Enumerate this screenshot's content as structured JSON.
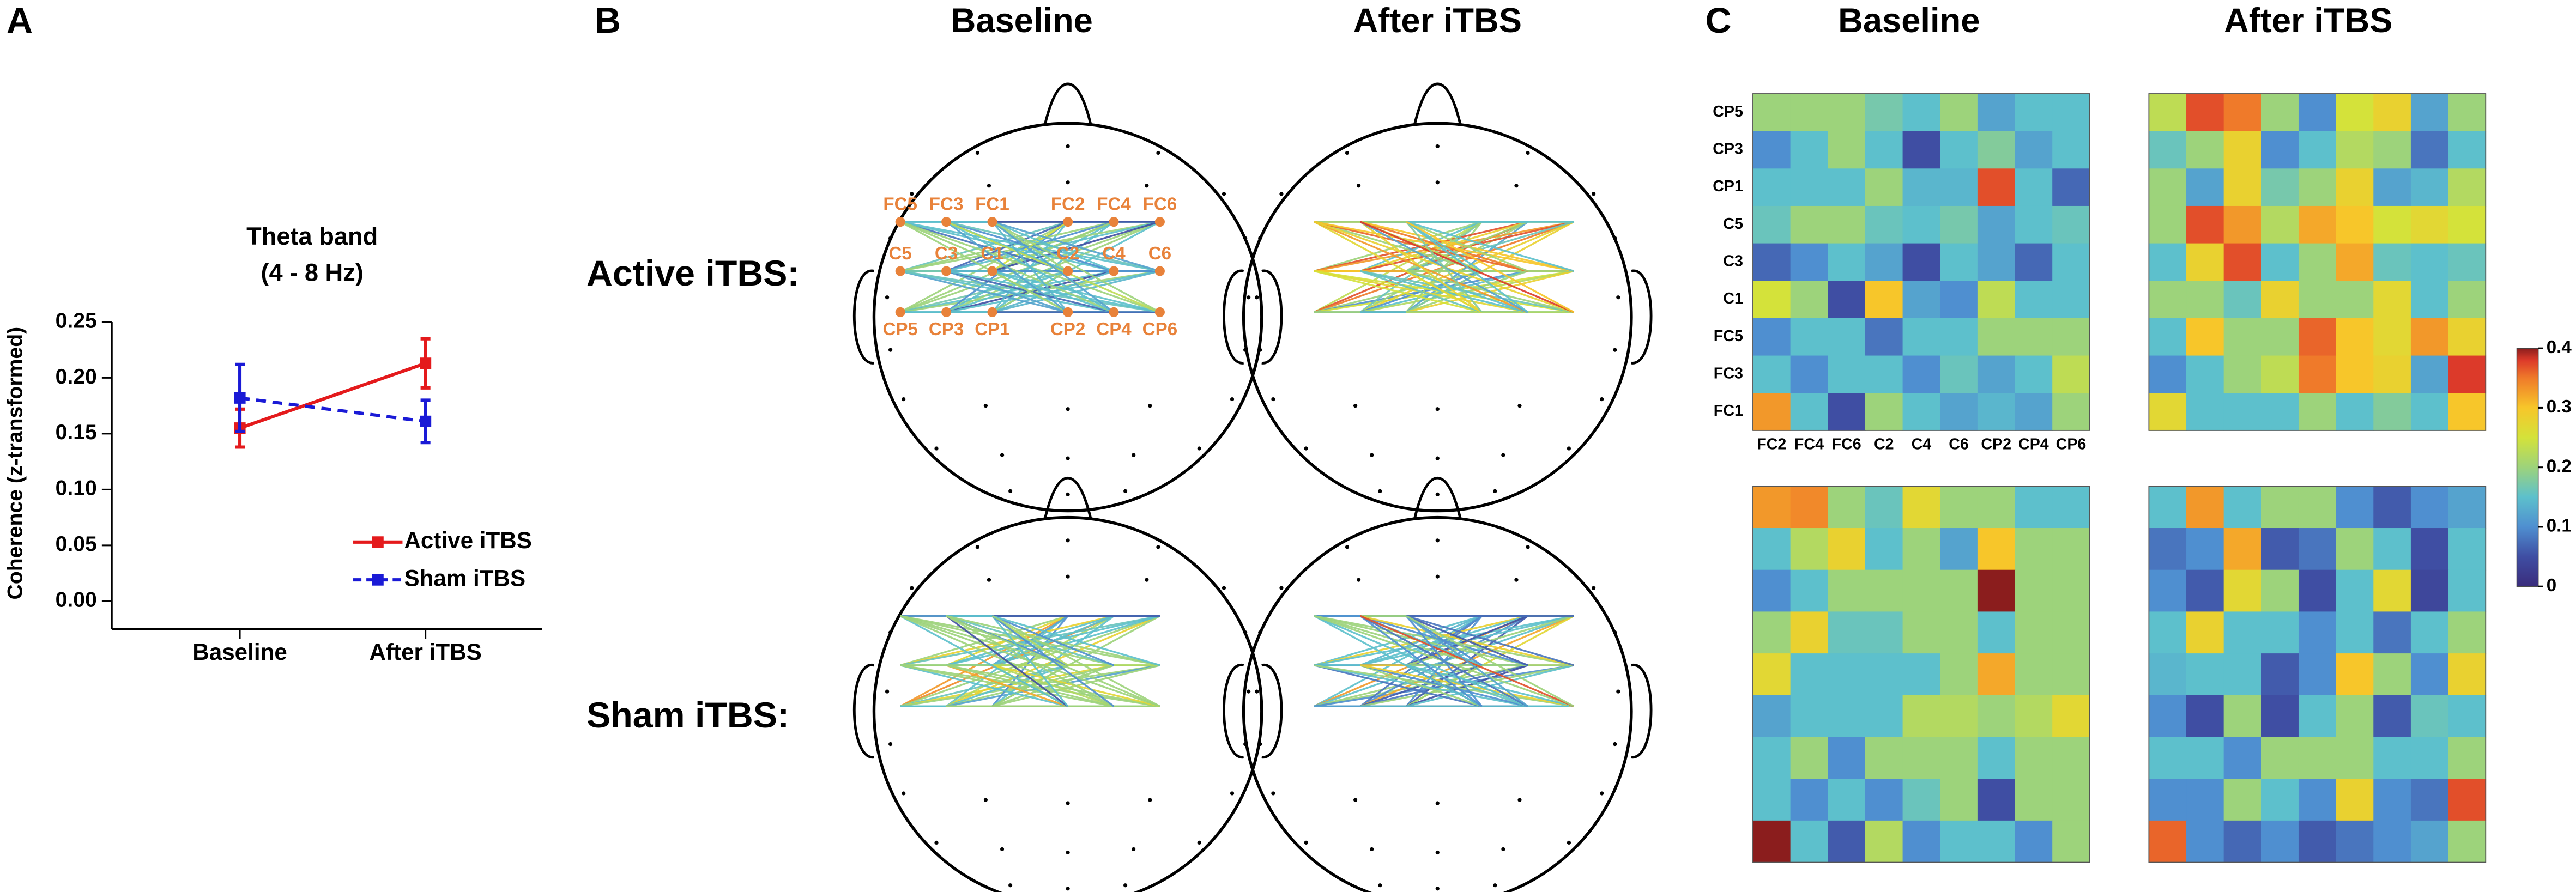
{
  "chart_data": [
    {
      "type": "line",
      "panel": "A",
      "title": "Theta band",
      "subtitle": "(4 - 8 Hz)",
      "ylabel": "Coherence (z-transformed)",
      "categories": [
        "Baseline",
        "After iTBS"
      ],
      "series": [
        {
          "name": "Active iTBS",
          "color": "#e41a1c",
          "dashed": false,
          "values": [
            0.155,
            0.213
          ],
          "errors": [
            0.017,
            0.022
          ]
        },
        {
          "name": "Sham iTBS",
          "color": "#1a1ad6",
          "dashed": true,
          "values": [
            0.182,
            0.161
          ],
          "errors": [
            0.03,
            0.019
          ]
        }
      ],
      "ylim": [
        -0.025,
        0.25
      ],
      "yticks": [
        {
          "value": 0,
          "label": "0.00"
        },
        {
          "value": 0.05,
          "label": "0.05"
        },
        {
          "value": 0.1,
          "label": "0.10"
        },
        {
          "value": 0.15,
          "label": "0.15"
        },
        {
          "value": 0.2,
          "label": "0.20"
        },
        {
          "value": 0.25,
          "label": "0.25"
        }
      ],
      "legend": "lower right"
    },
    {
      "type": "topoplot",
      "panel": "B",
      "columns": [
        "Baseline",
        "After iTBS"
      ],
      "rows": [
        "Active iTBS:",
        "Sham iTBS:"
      ],
      "electrode_color": "#e8823a"
    },
    {
      "type": "heatmap",
      "panel": "C",
      "columns": [
        "Baseline",
        "After iTBS"
      ],
      "xlabels": [
        "FC2",
        "FC4",
        "FC6",
        "C2",
        "C4",
        "C6",
        "CP2",
        "CP4",
        "CP6"
      ],
      "ylabels": [
        "CP5",
        "CP3",
        "CP1",
        "C5",
        "C3",
        "C1",
        "FC5",
        "FC3",
        "FC1"
      ],
      "matrices": [
        [
          [
            0.2,
            0.2,
            0.2,
            0.17,
            0.15,
            0.2,
            0.12,
            0.15,
            0.15
          ],
          [
            0.1,
            0.15,
            0.2,
            0.15,
            0.05,
            0.15,
            0.18,
            0.12,
            0.15
          ],
          [
            0.15,
            0.15,
            0.15,
            0.2,
            0.14,
            0.14,
            0.37,
            0.15,
            0.07
          ],
          [
            0.16,
            0.2,
            0.2,
            0.16,
            0.15,
            0.17,
            0.12,
            0.15,
            0.16
          ],
          [
            0.07,
            0.1,
            0.15,
            0.12,
            0.05,
            0.15,
            0.12,
            0.07,
            0.15
          ],
          [
            0.25,
            0.2,
            0.05,
            0.3,
            0.12,
            0.1,
            0.23,
            0.15,
            0.15
          ],
          [
            0.1,
            0.15,
            0.15,
            0.08,
            0.15,
            0.15,
            0.2,
            0.2,
            0.2
          ],
          [
            0.15,
            0.1,
            0.15,
            0.15,
            0.1,
            0.16,
            0.12,
            0.15,
            0.23
          ],
          [
            0.33,
            0.15,
            0.05,
            0.2,
            0.15,
            0.12,
            0.14,
            0.12,
            0.2
          ]
        ],
        [
          [
            0.23,
            0.37,
            0.35,
            0.2,
            0.1,
            0.25,
            0.28,
            0.12,
            0.2
          ],
          [
            0.16,
            0.2,
            0.28,
            0.1,
            0.15,
            0.22,
            0.2,
            0.08,
            0.15
          ],
          [
            0.2,
            0.12,
            0.28,
            0.17,
            0.2,
            0.28,
            0.12,
            0.14,
            0.22
          ],
          [
            0.2,
            0.37,
            0.33,
            0.22,
            0.32,
            0.3,
            0.25,
            0.27,
            0.25
          ],
          [
            0.15,
            0.28,
            0.37,
            0.15,
            0.2,
            0.32,
            0.16,
            0.15,
            0.16
          ],
          [
            0.2,
            0.2,
            0.16,
            0.28,
            0.2,
            0.2,
            0.27,
            0.15,
            0.2
          ],
          [
            0.15,
            0.3,
            0.2,
            0.2,
            0.36,
            0.3,
            0.27,
            0.33,
            0.28
          ],
          [
            0.1,
            0.15,
            0.2,
            0.23,
            0.35,
            0.3,
            0.28,
            0.12,
            0.38
          ],
          [
            0.27,
            0.15,
            0.15,
            0.15,
            0.2,
            0.15,
            0.18,
            0.15,
            0.3
          ]
        ],
        [
          [
            0.33,
            0.34,
            0.2,
            0.16,
            0.27,
            0.2,
            0.2,
            0.15,
            0.15
          ],
          [
            0.15,
            0.22,
            0.28,
            0.15,
            0.2,
            0.12,
            0.3,
            0.2,
            0.2
          ],
          [
            0.1,
            0.15,
            0.2,
            0.2,
            0.2,
            0.2,
            0.4,
            0.2,
            0.2
          ],
          [
            0.2,
            0.28,
            0.16,
            0.16,
            0.2,
            0.2,
            0.15,
            0.2,
            0.2
          ],
          [
            0.27,
            0.15,
            0.15,
            0.15,
            0.15,
            0.2,
            0.32,
            0.2,
            0.2
          ],
          [
            0.12,
            0.15,
            0.15,
            0.15,
            0.22,
            0.22,
            0.2,
            0.22,
            0.27
          ],
          [
            0.15,
            0.2,
            0.1,
            0.2,
            0.2,
            0.2,
            0.15,
            0.2,
            0.2
          ],
          [
            0.15,
            0.1,
            0.15,
            0.1,
            0.16,
            0.2,
            0.05,
            0.2,
            0.2
          ],
          [
            0.4,
            0.15,
            0.06,
            0.22,
            0.1,
            0.15,
            0.15,
            0.1,
            0.2
          ]
        ],
        [
          [
            0.15,
            0.33,
            0.15,
            0.2,
            0.2,
            0.1,
            0.06,
            0.1,
            0.12
          ],
          [
            0.08,
            0.1,
            0.32,
            0.06,
            0.08,
            0.2,
            0.15,
            0.05,
            0.15
          ],
          [
            0.1,
            0.06,
            0.27,
            0.2,
            0.05,
            0.15,
            0.27,
            0.04,
            0.15
          ],
          [
            0.15,
            0.28,
            0.15,
            0.15,
            0.1,
            0.15,
            0.08,
            0.15,
            0.2
          ],
          [
            0.14,
            0.15,
            0.15,
            0.06,
            0.1,
            0.3,
            0.2,
            0.1,
            0.28
          ],
          [
            0.1,
            0.05,
            0.2,
            0.05,
            0.15,
            0.2,
            0.06,
            0.16,
            0.15
          ],
          [
            0.15,
            0.15,
            0.1,
            0.2,
            0.2,
            0.2,
            0.15,
            0.15,
            0.2
          ],
          [
            0.1,
            0.1,
            0.2,
            0.15,
            0.1,
            0.28,
            0.1,
            0.08,
            0.37
          ],
          [
            0.36,
            0.1,
            0.07,
            0.1,
            0.06,
            0.08,
            0.1,
            0.12,
            0.2
          ]
        ]
      ],
      "colorbar": {
        "lim": [
          0,
          0.4
        ],
        "ticks": [
          0,
          0.1,
          0.2,
          0.3,
          0.4
        ]
      }
    }
  ]
}
